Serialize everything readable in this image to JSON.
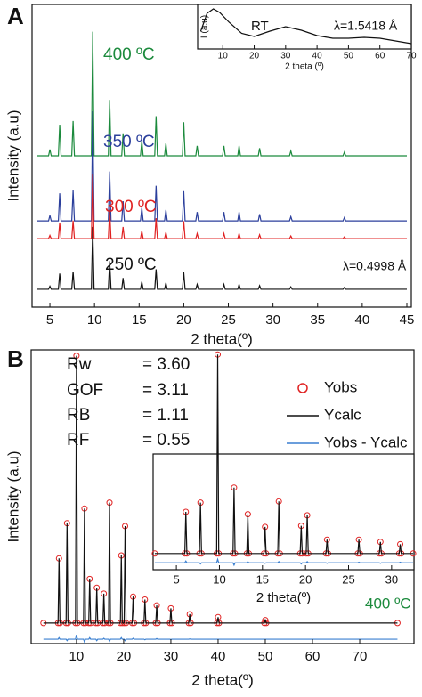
{
  "chart_data": [
    {
      "type": "line",
      "panel_label": "A",
      "xlabel": "2 theta(º)",
      "ylabel": "Intensity (a.u)",
      "xlim": [
        3,
        45.5
      ],
      "ylim": [
        0,
        100
      ],
      "xticks": [
        5,
        10,
        15,
        20,
        25,
        30,
        35,
        40,
        45
      ],
      "x": [
        3.5,
        4.85,
        5.0,
        5.15,
        5.95,
        6.1,
        6.25,
        7.45,
        7.6,
        7.75,
        9.65,
        9.8,
        9.95,
        11.55,
        11.7,
        11.85,
        13.05,
        13.2,
        13.35,
        15.15,
        15.3,
        15.45,
        16.75,
        16.9,
        17.05,
        17.85,
        18.0,
        18.15,
        19.85,
        20.0,
        20.15,
        21.35,
        21.5,
        21.65,
        24.35,
        24.5,
        24.65,
        26.05,
        26.2,
        26.35,
        28.35,
        28.5,
        28.65,
        31.85,
        32.0,
        32.15,
        37.85,
        38.0,
        38.15,
        45.0
      ],
      "series": [
        {
          "color": "#1b8a3c",
          "style": "line",
          "values": [
            50,
            50,
            52.1,
            50,
            50,
            60.3,
            50,
            50,
            61.5,
            50,
            50,
            91,
            50,
            50,
            68.5,
            50,
            50,
            57.4,
            50,
            50,
            54.9,
            50,
            50,
            63.1,
            50,
            50,
            54.1,
            50,
            50,
            61.1,
            50,
            50,
            53.3,
            50,
            50,
            53.3,
            50,
            50,
            53.3,
            50,
            50,
            52.5,
            50,
            50,
            51.6,
            50,
            50,
            51.2,
            50,
            50
          ]
        },
        {
          "color": "#2b3f9c",
          "style": "line",
          "values": [
            28.5,
            28.5,
            30.3,
            28.5,
            28.5,
            37.6,
            28.5,
            28.5,
            38.6,
            28.5,
            28.5,
            64.7,
            28.5,
            28.5,
            44.8,
            28.5,
            28.5,
            35,
            28.5,
            28.5,
            32.8,
            28.5,
            28.5,
            40.1,
            28.5,
            28.5,
            32.1,
            28.5,
            28.5,
            38.3,
            28.5,
            28.5,
            31.4,
            28.5,
            28.5,
            31.4,
            28.5,
            28.5,
            31.4,
            28.5,
            28.5,
            30.7,
            28.5,
            28.5,
            29.9,
            28.5,
            28.5,
            29.6,
            28.5,
            28.5
          ]
        },
        {
          "color": "#e02222",
          "style": "line",
          "values": [
            22.6,
            22.6,
            23.7,
            22.6,
            22.6,
            27.9,
            22.6,
            22.6,
            28.6,
            22.6,
            22.6,
            44,
            22.6,
            22.6,
            32.2,
            22.6,
            22.6,
            26.5,
            22.6,
            22.6,
            25.2,
            22.6,
            22.6,
            29.4,
            22.6,
            22.6,
            24.7,
            22.6,
            22.6,
            28.4,
            22.6,
            22.6,
            24.3,
            22.6,
            22.6,
            24.3,
            22.6,
            22.6,
            24.3,
            22.6,
            22.6,
            23.9,
            22.6,
            22.6,
            23.5,
            22.6,
            22.6,
            23.2,
            22.6,
            22.6
          ]
        },
        {
          "color": "#111111",
          "style": "line",
          "values": [
            5.9,
            5.9,
            6.9,
            5.9,
            5.9,
            11.1,
            5.9,
            5.9,
            11.7,
            5.9,
            5.9,
            26.5,
            5.9,
            5.9,
            15.2,
            5.9,
            5.9,
            9.6,
            5.9,
            5.9,
            8.4,
            5.9,
            5.9,
            12.5,
            5.9,
            5.9,
            8,
            5.9,
            5.9,
            11.5,
            5.9,
            5.9,
            7.5,
            5.9,
            5.9,
            7.5,
            5.9,
            5.9,
            7.5,
            5.9,
            5.9,
            7.1,
            5.9,
            5.9,
            6.7,
            5.9,
            5.9,
            6.5,
            5.9,
            5.9
          ]
        }
      ],
      "annotations": [
        {
          "text": "400 ºC",
          "color": "#1b8a3c"
        },
        {
          "text": "350 ºC",
          "color": "#2b3f9c"
        },
        {
          "text": "300 ºC",
          "color": "#e02222"
        },
        {
          "text": "250 ºC",
          "color": "#111111"
        },
        {
          "text": "λ=0.4998 Å",
          "color": "#111111"
        }
      ]
    },
    {
      "type": "line",
      "xlabel": "2 theta (º)",
      "ylabel": "I (a.u)",
      "xlim": [
        2,
        70
      ],
      "ylim": [
        0,
        100
      ],
      "xticks": [
        10,
        20,
        30,
        40,
        50,
        60,
        70
      ],
      "x": [
        3,
        5,
        7,
        9,
        12,
        16,
        20,
        25,
        30,
        35,
        40,
        45,
        50,
        55,
        60,
        65,
        70
      ],
      "series": [
        {
          "color": "#111111",
          "style": "line",
          "values": [
            40,
            80,
            90,
            82,
            60,
            35,
            28,
            40,
            50,
            42,
            30,
            24,
            24,
            26,
            24,
            18,
            12
          ]
        }
      ],
      "annotations": [
        {
          "text": "RT",
          "color": "#111111"
        },
        {
          "text": "λ=1.5418 Å",
          "color": "#111111"
        }
      ]
    },
    {
      "type": "line",
      "panel_label": "B",
      "xlabel": "2 theta(º)",
      "ylabel": "Intensity (a.u)",
      "legend": "upper right",
      "xlim": [
        0.4,
        81.5
      ],
      "ylim": [
        0,
        100
      ],
      "xticks": [
        10,
        20,
        30,
        40,
        50,
        60,
        70
      ],
      "x": [
        3,
        6.1,
        6.3,
        6.5,
        7.8,
        8.0,
        8.2,
        9.8,
        10.0,
        10.2,
        11.5,
        11.7,
        11.9,
        12.6,
        12.8,
        13.0,
        14.1,
        14.3,
        14.5,
        15.6,
        15.8,
        16.0,
        16.8,
        17.0,
        17.2,
        19.3,
        19.5,
        19.7,
        20.1,
        20.3,
        20.5,
        21.8,
        22.0,
        22.2,
        24.3,
        24.5,
        24.7,
        26.8,
        27.0,
        27.2,
        29.8,
        30.0,
        30.2,
        33.8,
        34.0,
        34.2,
        39.8,
        40.0,
        40.2,
        49.8,
        50.0,
        50.2,
        78
      ],
      "series": [
        {
          "name": "Yobs",
          "color": "#e02222",
          "style": "markers",
          "values": [
            7,
            7,
            29,
            7,
            7,
            41,
            7,
            7,
            98,
            7,
            7,
            46,
            7,
            7,
            22,
            7,
            7,
            19,
            7,
            7,
            17,
            7,
            7,
            48,
            7,
            7,
            30,
            7,
            7,
            40,
            7,
            7,
            16,
            7,
            7,
            15,
            7,
            7,
            13,
            7,
            7,
            12,
            7,
            7,
            10,
            7,
            7,
            9,
            7,
            7,
            8,
            7,
            7
          ]
        },
        {
          "name": "Ycalc",
          "color": "#111111",
          "style": "line",
          "values": [
            7,
            7,
            29,
            7,
            7,
            41,
            7,
            7,
            98,
            7,
            7,
            46,
            7,
            7,
            22,
            7,
            7,
            19,
            7,
            7,
            17,
            7,
            7,
            48,
            7,
            7,
            30,
            7,
            7,
            40,
            7,
            7,
            16,
            7,
            7,
            15,
            7,
            7,
            13,
            7,
            7,
            12,
            7,
            7,
            10,
            7,
            7,
            9,
            7,
            7,
            8,
            7,
            7
          ]
        },
        {
          "name": "Yobs - Ycalc",
          "color": "#3a7fd0",
          "style": "line",
          "values": [
            1.5,
            1.5,
            2.0,
            1.5,
            1.5,
            1.0,
            1.5,
            1.5,
            3.0,
            1.5,
            1.5,
            0.5,
            1.5,
            1.5,
            2.0,
            1.5,
            1.5,
            1.0,
            1.5,
            1.5,
            1.8,
            1.5,
            1.5,
            0.8,
            1.5,
            1.5,
            2.0,
            1.5,
            1.5,
            1.0,
            1.5,
            1.5,
            1.8,
            1.5,
            1.5,
            1.3,
            1.5,
            1.5,
            1.7,
            1.5,
            1.5,
            1.4,
            1.5,
            1.5,
            1.6,
            1.5,
            1.5,
            1.5,
            1.5,
            1.5,
            1.5,
            1.5,
            1.5
          ]
        }
      ],
      "annotations": [
        {
          "text": "Rw",
          "color": "#111111"
        },
        {
          "text": "= 3.60",
          "color": "#111111"
        },
        {
          "text": "GOF",
          "color": "#111111"
        },
        {
          "text": "= 3.11",
          "color": "#111111"
        },
        {
          "text": "RB",
          "color": "#111111"
        },
        {
          "text": "= 1.11",
          "color": "#111111"
        },
        {
          "text": "RF",
          "color": "#111111"
        },
        {
          "text": "= 0.55",
          "color": "#111111"
        },
        {
          "text": "400 ºC",
          "color": "#1b8a3c"
        }
      ]
    },
    {
      "type": "line",
      "xlabel": "2 theta(º)",
      "xlim": [
        2.3,
        32.6
      ],
      "ylim": [
        0,
        100
      ],
      "xticks": [
        5,
        10,
        15,
        20,
        25,
        30
      ],
      "x": [
        2.5,
        5.98,
        6.1,
        6.22,
        7.68,
        7.8,
        7.92,
        9.68,
        9.8,
        9.92,
        11.58,
        11.7,
        11.82,
        13.18,
        13.3,
        13.42,
        15.18,
        15.3,
        15.42,
        16.78,
        16.9,
        17.02,
        19.38,
        19.5,
        19.62,
        20.08,
        20.2,
        20.32,
        22.38,
        22.5,
        22.62,
        26.08,
        26.2,
        26.32,
        28.58,
        28.7,
        28.82,
        30.88,
        31.0,
        31.12,
        32.5
      ],
      "series": [
        {
          "color": "#e02222",
          "style": "markers",
          "values": [
            14,
            14,
            50,
            14,
            14,
            58,
            14,
            14,
            186,
            14,
            14,
            71,
            14,
            14,
            48,
            14,
            14,
            37,
            14,
            14,
            59,
            14,
            14,
            38,
            14,
            14,
            47,
            14,
            14,
            26,
            14,
            14,
            26,
            14,
            14,
            24,
            14,
            14,
            22,
            14,
            14
          ]
        },
        {
          "color": "#111111",
          "style": "line",
          "values": [
            14,
            14,
            50,
            14,
            14,
            58,
            14,
            14,
            186,
            14,
            14,
            71,
            14,
            14,
            48,
            14,
            14,
            37,
            14,
            14,
            59,
            14,
            14,
            38,
            14,
            14,
            47,
            14,
            14,
            26,
            14,
            14,
            26,
            14,
            14,
            24,
            14,
            14,
            22,
            14,
            14
          ]
        },
        {
          "color": "#3a7fd0",
          "style": "line",
          "values": [
            6,
            6,
            7.5,
            6,
            6,
            5,
            6,
            6,
            9,
            6,
            6,
            4,
            6,
            6,
            7,
            6,
            6,
            5.5,
            6,
            6,
            7,
            6,
            6,
            5,
            6,
            6,
            7,
            6,
            6,
            5.5,
            6,
            6,
            6.5,
            6,
            6,
            5.5,
            6,
            6,
            6.5,
            6,
            6
          ]
        }
      ]
    }
  ]
}
